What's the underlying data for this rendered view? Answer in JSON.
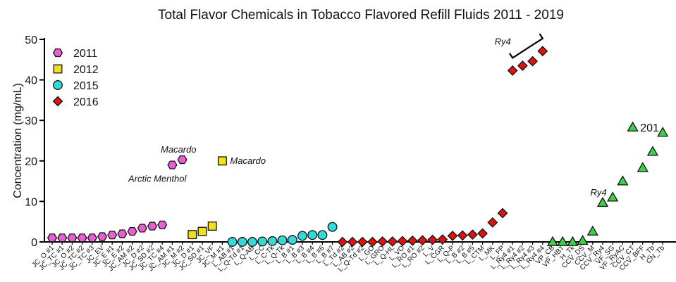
{
  "chart_data": {
    "type": "scatter",
    "title": "Total Flavor Chemicals in Tobacco Flavored Refill Fluids  2011 - 2019",
    "ylabel": "Concentration (mg/mL)",
    "xlabel": "",
    "ylim": [
      0,
      50
    ],
    "yticks": [
      0,
      10,
      20,
      30,
      40,
      50
    ],
    "legend_position": "top-left",
    "categories": [
      "JC_O #1",
      "JC_TC #1",
      "JC_O #2",
      "JC_TC #2",
      "JC_TC #3",
      "JC_EV",
      "JC_E #1",
      "JC_E #2",
      "JC_AM #2",
      "JC_D #2",
      "JC_SD #2",
      "JC_TC #4",
      "JC_AM #1",
      "JC_M #2",
      "JC_D #1",
      "JC_SD #1",
      "JC_VF",
      "JC_M #1",
      "L_AB #1",
      "L_Q-Td #1",
      "L_Q-AB",
      "L_CC",
      "L_C-Tk",
      "L_Q-Tk",
      "L_B #1",
      "L_B #3",
      "L_B #4",
      "L_B #6",
      "L_B #7",
      "L_Td #2",
      "L_AB #2",
      "L_Q-Td #2",
      "L_GO",
      "L_GRO",
      "L_Q-HL",
      "L_VO",
      "L_RO #1",
      "L_RO #2",
      "L_V",
      "L_CGR",
      "L_Q-P",
      "L_B #2",
      "L_B #5",
      "L_CTM",
      "L_MK",
      "L_FP",
      "L_Ry4 #1",
      "L_Ry4 #2",
      "L_Ry4 #3",
      "L_Ry4 #4",
      "VP_CB",
      "VP_HBT",
      "H_Tk",
      "CCV_DS",
      "CCV_M",
      "CCV_Ry4",
      "VF_SG",
      "VF_RyAC",
      "CCV_CT",
      "CCV_BFF",
      "H_Tb",
      "CN_Tb"
    ],
    "series": [
      {
        "name": "2011",
        "marker": "hexagon",
        "color": "#e85fd1",
        "points": [
          {
            "x": "JC_O #1",
            "y": 1.0
          },
          {
            "x": "JC_TC #1",
            "y": 1.0
          },
          {
            "x": "JC_O #2",
            "y": 1.0
          },
          {
            "x": "JC_TC #2",
            "y": 1.0
          },
          {
            "x": "JC_TC #3",
            "y": 1.0
          },
          {
            "x": "JC_EV",
            "y": 1.3
          },
          {
            "x": "JC_E #1",
            "y": 1.7
          },
          {
            "x": "JC_E #2",
            "y": 2.0
          },
          {
            "x": "JC_AM #2",
            "y": 2.6
          },
          {
            "x": "JC_D #2",
            "y": 3.4
          },
          {
            "x": "JC_SD #2",
            "y": 3.9
          },
          {
            "x": "JC_TC #4",
            "y": 4.2
          },
          {
            "x": "JC_AM #1",
            "y": 19.0
          },
          {
            "x": "JC_M #2",
            "y": 20.3
          }
        ]
      },
      {
        "name": "2012",
        "marker": "square",
        "color": "#f2e01a",
        "points": [
          {
            "x": "JC_D #1",
            "y": 1.8
          },
          {
            "x": "JC_SD #1",
            "y": 2.6
          },
          {
            "x": "JC_VF",
            "y": 3.9
          },
          {
            "x": "JC_M #1",
            "y": 20.0
          }
        ]
      },
      {
        "name": "2015",
        "marker": "circle",
        "color": "#34dada",
        "points": [
          {
            "x": "L_AB #1",
            "y": 0.0
          },
          {
            "x": "L_Q-Td #1",
            "y": 0.0
          },
          {
            "x": "L_Q-AB",
            "y": 0.0
          },
          {
            "x": "L_CC",
            "y": 0.1
          },
          {
            "x": "L_C-Tk",
            "y": 0.2
          },
          {
            "x": "L_Q-Tk",
            "y": 0.4
          },
          {
            "x": "L_B #1",
            "y": 0.5
          },
          {
            "x": "L_B #3",
            "y": 1.5
          },
          {
            "x": "L_B #4",
            "y": 1.7
          },
          {
            "x": "L_B #6",
            "y": 1.7
          },
          {
            "x": "L_B #7",
            "y": 3.7
          }
        ]
      },
      {
        "name": "2016",
        "marker": "diamond",
        "color": "#dd1212",
        "points": [
          {
            "x": "L_Td #2",
            "y": 0.0
          },
          {
            "x": "L_AB #2",
            "y": 0.0
          },
          {
            "x": "L_Q-Td #2",
            "y": 0.0
          },
          {
            "x": "L_GO",
            "y": 0.0
          },
          {
            "x": "L_GRO",
            "y": 0.1
          },
          {
            "x": "L_Q-HL",
            "y": 0.1
          },
          {
            "x": "L_VO",
            "y": 0.2
          },
          {
            "x": "L_RO #1",
            "y": 0.3
          },
          {
            "x": "L_RO #2",
            "y": 0.4
          },
          {
            "x": "L_V",
            "y": 0.5
          },
          {
            "x": "L_CGR",
            "y": 0.6
          },
          {
            "x": "L_Q-P",
            "y": 1.5
          },
          {
            "x": "L_B #2",
            "y": 1.6
          },
          {
            "x": "L_B #5",
            "y": 1.8
          },
          {
            "x": "L_CTM",
            "y": 2.1
          },
          {
            "x": "L_MK",
            "y": 4.8
          },
          {
            "x": "L_FP",
            "y": 7.1
          },
          {
            "x": "L_Ry4 #1",
            "y": 42.3
          },
          {
            "x": "L_Ry4 #2",
            "y": 43.5
          },
          {
            "x": "L_Ry4 #3",
            "y": 44.6
          },
          {
            "x": "L_Ry4 #4",
            "y": 47.1
          }
        ]
      },
      {
        "name": "2019",
        "marker": "triangle",
        "color": "#3fd04a",
        "in_legend": false,
        "points": [
          {
            "x": "VP_CB",
            "y": 0.0
          },
          {
            "x": "VP_HBT",
            "y": 0.0
          },
          {
            "x": "H_Tk",
            "y": 0.0
          },
          {
            "x": "CCV_DS",
            "y": 0.3
          },
          {
            "x": "CCV_M",
            "y": 2.6
          },
          {
            "x": "CCV_Ry4",
            "y": 9.7
          },
          {
            "x": "VF_SG",
            "y": 11.0
          },
          {
            "x": "VF_RyAC",
            "y": 15.0
          },
          {
            "x": "CCV_CT",
            "y": 28.3
          },
          {
            "x": "CCV_BFF",
            "y": 18.3
          },
          {
            "x": "H_Tb",
            "y": 22.3
          },
          {
            "x": "CN_Tb",
            "y": 27.0
          }
        ]
      }
    ],
    "annotations": [
      {
        "text": "Arctic Menthol",
        "x": "JC_AM #1",
        "y": 19.0
      },
      {
        "text": "Macardo",
        "x": "JC_M #2",
        "y": 20.3
      },
      {
        "text": "Macardo",
        "x": "JC_M #1",
        "y": 20.0
      },
      {
        "text": "Ry4",
        "x": "L_Ry4 #1",
        "y": 47.1
      },
      {
        "text": "Ry4",
        "x": "CCV_Ry4",
        "y": 9.7
      },
      {
        "text": "201",
        "x": "CN_Tb",
        "y": 28.3
      }
    ]
  }
}
